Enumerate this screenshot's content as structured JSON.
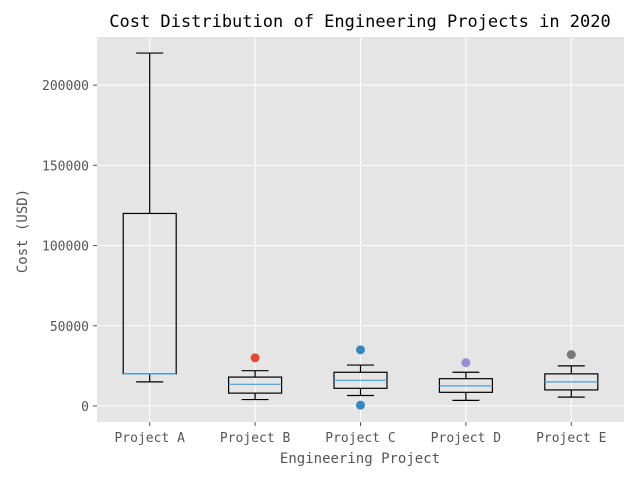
{
  "chart_data": {
    "type": "boxplot",
    "title": "Cost Distribution of Engineering Projects in 2020",
    "xlabel": "Engineering Project",
    "ylabel": "Cost (USD)",
    "ylim": [
      -10000,
      230000
    ],
    "yticks": [
      0,
      50000,
      100000,
      150000,
      200000
    ],
    "grid": true,
    "categories": [
      "Project A",
      "Project B",
      "Project C",
      "Project D",
      "Project E"
    ],
    "boxes": [
      {
        "name": "Project A",
        "whisker_low": 15000,
        "q1": 20000,
        "median": 20000,
        "q3": 120000,
        "whisker_high": 220000,
        "outliers": []
      },
      {
        "name": "Project B",
        "whisker_low": 4000,
        "q1": 8000,
        "median": 13500,
        "q3": 18000,
        "whisker_high": 22000,
        "outliers": [
          30000
        ]
      },
      {
        "name": "Project C",
        "whisker_low": 6500,
        "q1": 11000,
        "median": 16000,
        "q3": 21000,
        "whisker_high": 25500,
        "outliers": [
          35000,
          500
        ]
      },
      {
        "name": "Project D",
        "whisker_low": 3500,
        "q1": 8500,
        "median": 12500,
        "q3": 17000,
        "whisker_high": 21000,
        "outliers": [
          27000
        ]
      },
      {
        "name": "Project E",
        "whisker_low": 5500,
        "q1": 10000,
        "median": 15000,
        "q3": 20000,
        "whisker_high": 25000,
        "outliers": [
          32000
        ]
      }
    ],
    "colors": {
      "background": "#e5e5e5",
      "grid": "#ffffff",
      "box": "#000000",
      "median": "#4c9ed6",
      "outliers": [
        "#e24a33",
        "#348abd",
        "#988ed5",
        "#777777"
      ]
    }
  }
}
